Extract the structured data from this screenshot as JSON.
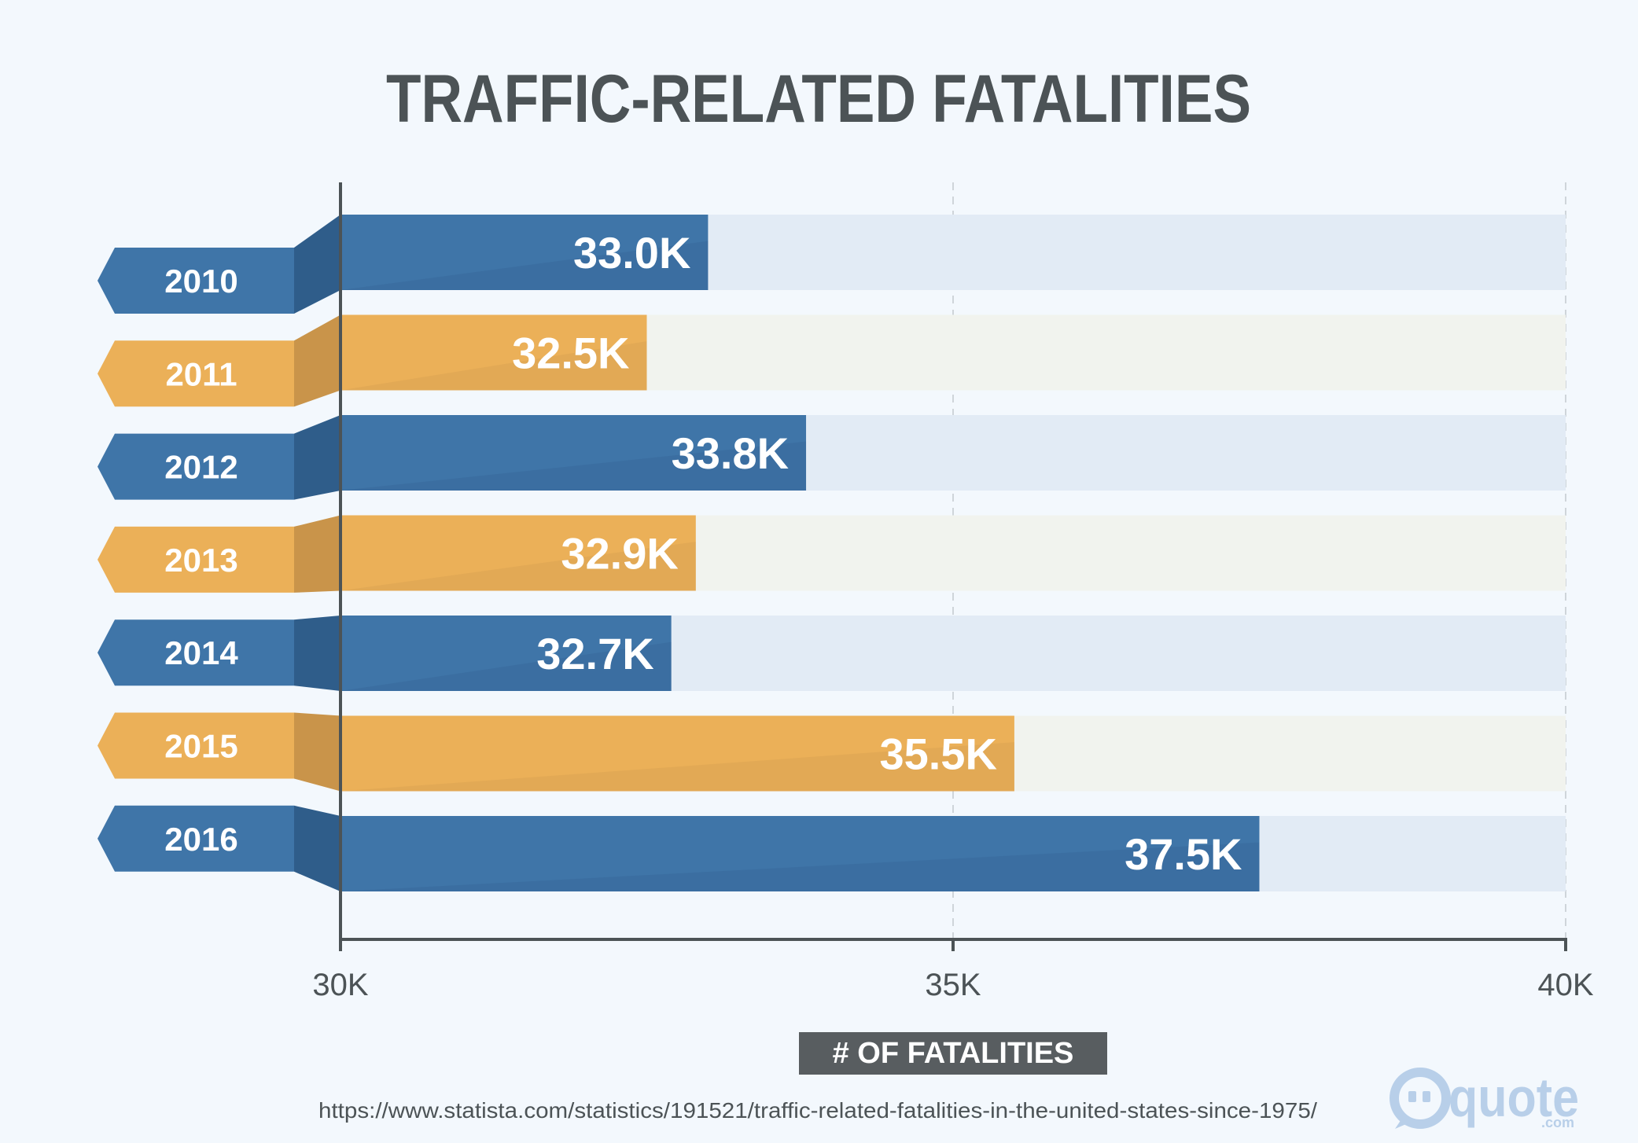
{
  "chart_data": {
    "type": "bar",
    "orientation": "horizontal",
    "title": "TRAFFIC-RELATED FATALITIES",
    "xlabel": "# OF FATALITIES",
    "categories": [
      "2010",
      "2011",
      "2012",
      "2013",
      "2014",
      "2015",
      "2016"
    ],
    "values": [
      33.0,
      32.5,
      33.8,
      32.9,
      32.7,
      35.5,
      37.5
    ],
    "value_labels": [
      "33.0K",
      "32.5K",
      "33.8K",
      "32.9K",
      "32.7K",
      "35.5K",
      "37.5K"
    ],
    "value_unit": "thousands of fatalities",
    "xlim": [
      30,
      40
    ],
    "x_ticks": [
      30,
      35,
      40
    ],
    "x_tick_labels": [
      "30K",
      "35K",
      "40K"
    ],
    "grid": "dashed vertical lines at 35K and 40K",
    "legend": "none",
    "colors": {
      "blue": "#3f75a8",
      "blue_dark": "#2f5d8a",
      "blue_track": "#e2ebf5",
      "orange": "#ebb058",
      "orange_dark": "#c9944a",
      "orange_track": "#f1f3ee"
    },
    "bar_color_pattern": [
      "blue",
      "orange",
      "blue",
      "orange",
      "blue",
      "orange",
      "blue"
    ]
  },
  "source": "https://www.statista.com/statistics/191521/traffic-related-fatalities-in-the-united-states-since-1975/",
  "brand": {
    "name": "quote",
    "suffix": ".com",
    "icon": "speech-bubble-logo-icon"
  },
  "colors": {
    "background": "#f3f8fd",
    "text": "#4c5356",
    "axis": "#4c5356",
    "xlabel_box": "#585d60"
  }
}
